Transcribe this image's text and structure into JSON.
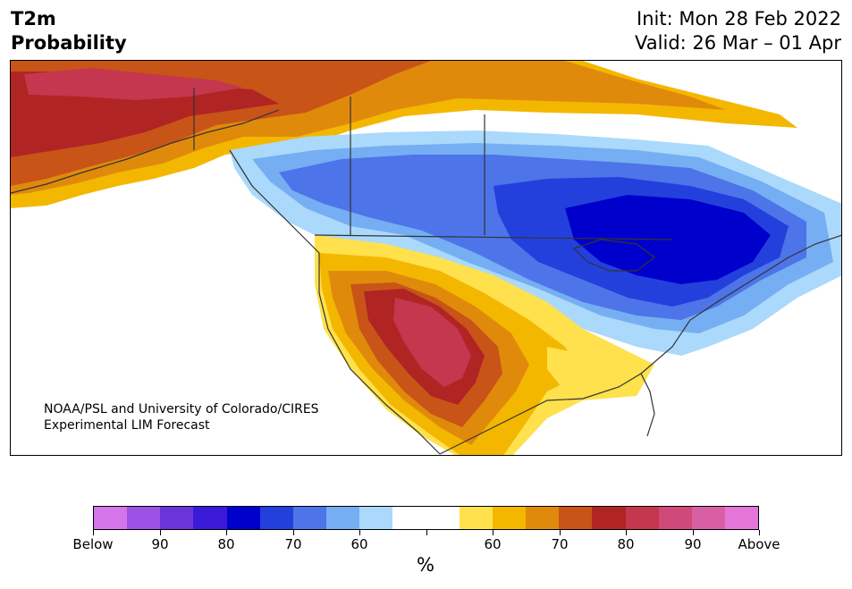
{
  "header": {
    "variable": "T2m",
    "product": "Probability",
    "init": "Init: Mon 28 Feb 2022",
    "valid": "Valid: 26 Mar – 01 Apr"
  },
  "credit": {
    "line1": "NOAA/PSL and University of Colorado/CIRES",
    "line2": "Experimental LIM Forecast"
  },
  "colorbar": {
    "unit": "%",
    "colors": [
      "#d575ea",
      "#9b51e3",
      "#6a34d8",
      "#3a1ad8",
      "#0000cc",
      "#2340dd",
      "#4d74e8",
      "#75aef3",
      "#aad9fb",
      "#ffffff",
      "#ffffff",
      "#ffe14d",
      "#f4b700",
      "#e08a0c",
      "#c85418",
      "#b02424",
      "#c4374e",
      "#cf4a78",
      "#d95fa5",
      "#e675d8"
    ],
    "ticks": [
      "Below",
      "90",
      "80",
      "70",
      "60",
      "",
      "60",
      "70",
      "80",
      "90",
      "Above"
    ]
  },
  "map": {
    "region": "North America",
    "palette": {
      "above_60": "#ffe14d",
      "above_70": "#f4b700",
      "above_80": "#e08a0c",
      "above_90": "#c85418",
      "above_95": "#b02424",
      "above_max": "#c4374e",
      "below_60": "#aad9fb",
      "below_70": "#75aef3",
      "below_80": "#4d74e8",
      "below_90": "#2340dd",
      "below_max": "#0000cc",
      "coast": "#333333"
    }
  }
}
